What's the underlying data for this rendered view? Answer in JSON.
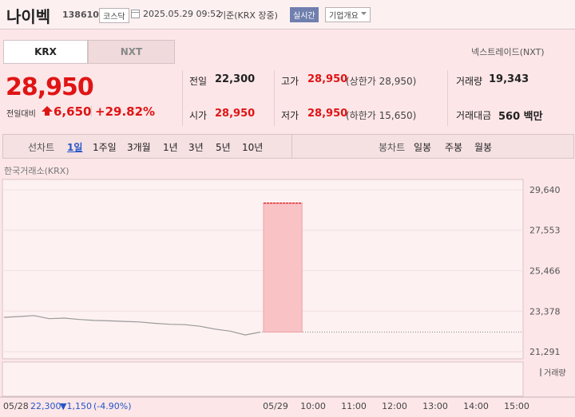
{
  "header": {
    "name": "나이벡",
    "code": "138610",
    "market": "코스닥",
    "datetime": "2025.05.29 09:52",
    "basis": "기준(KRX 장중)",
    "realtime": "실시간",
    "overview": "기업개요"
  },
  "tabs": [
    "KRX",
    "NXT"
  ],
  "nextrade": "넥스트레이드(NXT)",
  "price": {
    "current": "28,950",
    "change_label": "전일대비",
    "change": "6,650",
    "rate": "+29.82%"
  },
  "stats": [
    [
      {
        "label": "전일",
        "value": "22,300"
      },
      {
        "label": "고가",
        "value": "28,950",
        "note": "(상한가 28,950)"
      },
      {
        "label": "거래량",
        "value": "19,343"
      }
    ],
    [
      {
        "label": "시가",
        "value": "28,950"
      },
      {
        "label": "저가",
        "value": "28,950",
        "note": "(하한가 15,650)"
      },
      {
        "label": "거래대금",
        "value": "560 백만"
      }
    ]
  ],
  "periods": [
    "선차트",
    "1일",
    "1주일",
    "3개월",
    "1년",
    "3년",
    "5년",
    "10년"
  ],
  "candles": [
    "봉차트",
    "일봉",
    "주봉",
    "월봉"
  ],
  "chart_data": {
    "type": "line",
    "title": "한국거래소(KRX)",
    "ylim": [
      21291,
      29640
    ],
    "yticks": [
      {
        "value": 29640,
        "label": "29,640"
      },
      {
        "value": 27553,
        "label": "27,553"
      },
      {
        "value": 25466,
        "label": "25,466"
      },
      {
        "value": 23378,
        "label": "23,378"
      },
      {
        "value": 21291,
        "label": "21,291"
      }
    ],
    "xticks": [
      "05/29",
      "10:00",
      "11:00",
      "12:00",
      "13:00",
      "14:00",
      "15:00"
    ],
    "values": [
      23060,
      23100,
      23150,
      22990,
      23020,
      22950,
      22900,
      22880,
      22850,
      22820,
      22750,
      22700,
      22680,
      22600,
      22450,
      22350,
      22150,
      22300
    ],
    "color": "#9a9a9a",
    "prev_close": 22300,
    "today": {
      "value": 28950,
      "color": "#e03030"
    },
    "volume_label": "거래량",
    "summary": {
      "date": "05/28",
      "close": "22,300",
      "change": "▼1,150",
      "rate": "(-4.90%)"
    }
  }
}
